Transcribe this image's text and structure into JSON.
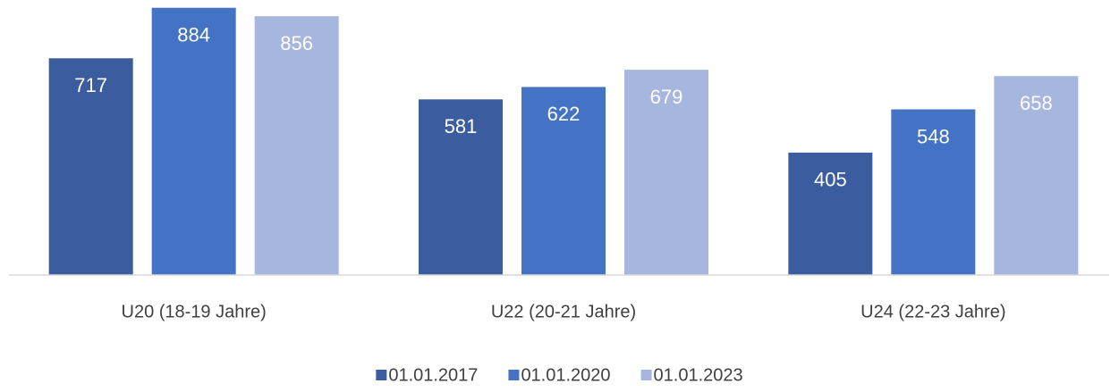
{
  "chart_data": {
    "type": "bar",
    "categories": [
      "U20 (18-19 Jahre)",
      "U22 (20-21 Jahre)",
      "U24 (22-23 Jahre)"
    ],
    "series": [
      {
        "name": "01.01.2017",
        "color": "#3b5c9e",
        "values": [
          717,
          581,
          405
        ]
      },
      {
        "name": "01.01.2020",
        "color": "#4472c4",
        "values": [
          884,
          622,
          548
        ]
      },
      {
        "name": "01.01.2023",
        "color": "#a7b6df",
        "values": [
          856,
          679,
          658
        ]
      }
    ],
    "ylim": [
      0,
      900
    ],
    "grid": false,
    "legend": "bottom"
  }
}
